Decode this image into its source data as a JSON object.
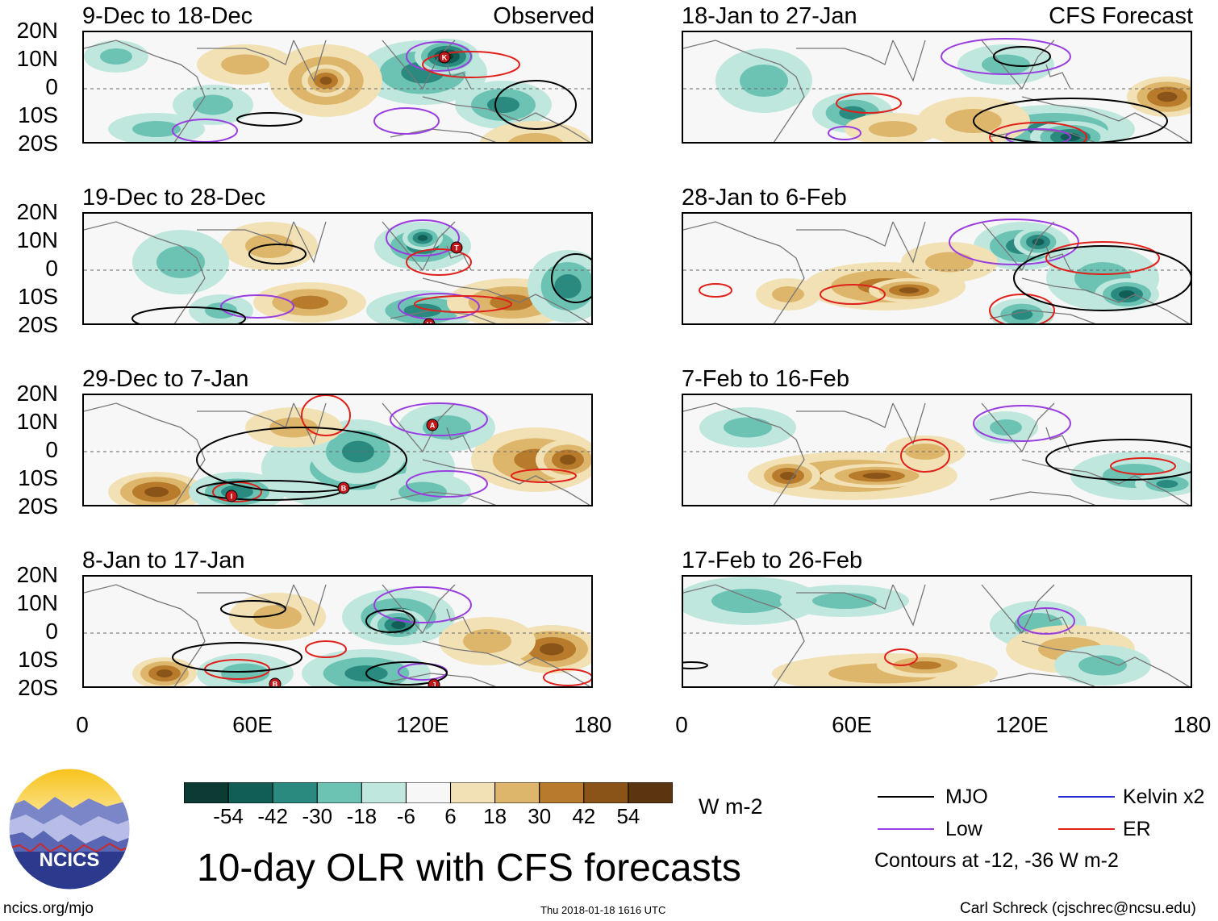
{
  "figure_title": "10-day OLR with CFS forecasts",
  "left_column_label": "Observed",
  "right_column_label": "CFS Forecast",
  "panels_left": [
    {
      "title": "9-Dec to 18-Dec"
    },
    {
      "title": "19-Dec to 28-Dec"
    },
    {
      "title": "29-Dec to 7-Jan"
    },
    {
      "title": "8-Jan to 17-Jan"
    }
  ],
  "panels_right": [
    {
      "title": "18-Jan to 27-Jan"
    },
    {
      "title": "28-Jan to 6-Feb"
    },
    {
      "title": "7-Feb to 16-Feb"
    },
    {
      "title": "17-Feb to 26-Feb"
    }
  ],
  "lat_labels": [
    "20N",
    "10N",
    "0",
    "10S",
    "20S"
  ],
  "lon_labels": [
    "0",
    "60E",
    "120E",
    "180"
  ],
  "colorbar": {
    "ticks": [
      "-54",
      "-42",
      "-30",
      "-18",
      "-6",
      "6",
      "18",
      "30",
      "42",
      "54"
    ],
    "units": "W m-2",
    "colors": [
      "#0b3b33",
      "#115e56",
      "#2b8a80",
      "#6cc3b4",
      "#bfe7de",
      "#f7f7f7",
      "#f2e1b4",
      "#ddb66c",
      "#b87a2b",
      "#8a5418",
      "#5a3510"
    ]
  },
  "legend": {
    "items": [
      {
        "label": "MJO",
        "color": "#000000"
      },
      {
        "label": "Kelvin x2",
        "color": "#2a2ad4"
      },
      {
        "label": "Low",
        "color": "#9a3de0"
      },
      {
        "label": "ER",
        "color": "#e0201a"
      }
    ],
    "contours_note": "Contours at -12, -36 W m-2"
  },
  "storm_markers": {
    "p0": [
      "K"
    ],
    "p1": [
      "T",
      "H"
    ],
    "p2": [
      "A",
      "I",
      "B"
    ],
    "p3": [
      "B",
      "J"
    ]
  },
  "logo_text": "NCICS",
  "footer": {
    "url": "ncics.org/mjo",
    "timestamp": "Thu 2018-01-18 1616 UTC",
    "credit": "Carl Schreck (cjschrec@ncsu.edu)"
  }
}
